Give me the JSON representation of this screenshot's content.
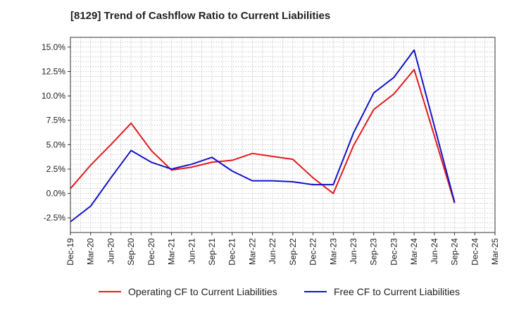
{
  "chart_data": {
    "type": "line",
    "title": "[8129]  Trend of Cashflow Ratio to Current Liabilities",
    "xlabel": "",
    "ylabel": "",
    "categories": [
      "Dec-19",
      "Mar-20",
      "Jun-20",
      "Sep-20",
      "Dec-20",
      "Mar-21",
      "Jun-21",
      "Sep-21",
      "Dec-21",
      "Mar-22",
      "Jun-22",
      "Sep-22",
      "Dec-22",
      "Mar-23",
      "Jun-23",
      "Sep-23",
      "Dec-23",
      "Mar-24",
      "Jun-24",
      "Sep-24",
      "Dec-24",
      "Mar-25"
    ],
    "ylim": [
      -4.0,
      16.0
    ],
    "yticks": [
      -2.5,
      0.0,
      2.5,
      5.0,
      7.5,
      10.0,
      12.5,
      15.0
    ],
    "ytick_labels": [
      "-2.5%",
      "0.0%",
      "2.5%",
      "5.0%",
      "7.5%",
      "10.0%",
      "12.5%",
      "15.0%"
    ],
    "grid": true,
    "legend_position": "bottom",
    "series": [
      {
        "name": "Operating CF to Current Liabilities",
        "color": "#e31a1c",
        "values": [
          0.5,
          2.9,
          5.0,
          7.2,
          4.4,
          2.4,
          2.7,
          3.2,
          3.4,
          4.1,
          3.8,
          3.5,
          1.6,
          0.0,
          4.9,
          8.6,
          10.2,
          12.7,
          5.9,
          -1.0,
          null,
          null
        ]
      },
      {
        "name": "Free CF to Current Liabilities",
        "color": "#1414c8",
        "values": [
          -2.9,
          -1.3,
          1.6,
          4.4,
          3.2,
          2.5,
          3.0,
          3.7,
          2.3,
          1.3,
          1.3,
          1.2,
          0.9,
          0.9,
          6.2,
          10.3,
          11.9,
          14.7,
          6.9,
          -0.9,
          null,
          null
        ]
      }
    ]
  }
}
